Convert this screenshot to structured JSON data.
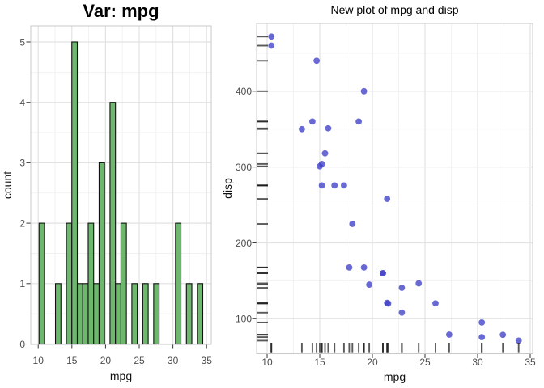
{
  "figure": {
    "background": "#ffffff",
    "grid_major_color": "#e2e2e2",
    "grid_minor_color": "#efefef",
    "panel_border_color": "#c9c9c9",
    "tick_mark_color": "#333333",
    "tick_label_color": "#4d4d4d"
  },
  "chart_data": [
    {
      "type": "bar",
      "subtype": "histogram",
      "title": "Var: mpg",
      "xlabel": "mpg",
      "ylabel": "count",
      "bar_fill": "#6eb86e",
      "bar_stroke": "#111111",
      "binwidth": 0.81,
      "bins": [
        {
          "center": 10.53,
          "count": 2
        },
        {
          "center": 12.97,
          "count": 1
        },
        {
          "center": 14.59,
          "count": 2
        },
        {
          "center": 15.4,
          "count": 5
        },
        {
          "center": 16.21,
          "count": 1
        },
        {
          "center": 17.02,
          "count": 1
        },
        {
          "center": 17.83,
          "count": 2
        },
        {
          "center": 18.64,
          "count": 1
        },
        {
          "center": 19.45,
          "count": 3
        },
        {
          "center": 21.07,
          "count": 4
        },
        {
          "center": 21.88,
          "count": 1
        },
        {
          "center": 22.69,
          "count": 2
        },
        {
          "center": 24.31,
          "count": 1
        },
        {
          "center": 25.93,
          "count": 1
        },
        {
          "center": 27.55,
          "count": 1
        },
        {
          "center": 30.79,
          "count": 2
        },
        {
          "center": 32.41,
          "count": 1
        },
        {
          "center": 34.03,
          "count": 1
        }
      ],
      "xticks": [
        10,
        15,
        20,
        25,
        30,
        35
      ],
      "yticks": [
        0,
        1,
        2,
        3,
        4,
        5
      ],
      "xlim": [
        8.9,
        35.7
      ],
      "ylim": [
        0,
        5.27
      ],
      "grid": "major and minor, light gray on white",
      "legend": "none"
    },
    {
      "type": "scatter",
      "title": "New plot of mpg and disp",
      "xlabel": "mpg",
      "ylabel": "disp",
      "point_color": "#4343c8",
      "point_opacity": 0.8,
      "rug_sides": "bottom and left",
      "rug_color": "#1a1a1a",
      "points": [
        [
          21.0,
          160
        ],
        [
          21.0,
          160
        ],
        [
          22.8,
          108
        ],
        [
          21.4,
          258
        ],
        [
          18.7,
          360
        ],
        [
          18.1,
          225
        ],
        [
          14.3,
          360
        ],
        [
          24.4,
          146.7
        ],
        [
          22.8,
          140.8
        ],
        [
          19.2,
          167.6
        ],
        [
          17.8,
          167.6
        ],
        [
          16.4,
          275.8
        ],
        [
          17.3,
          275.8
        ],
        [
          15.2,
          275.8
        ],
        [
          10.4,
          472
        ],
        [
          10.4,
          460
        ],
        [
          14.7,
          440
        ],
        [
          32.4,
          78.7
        ],
        [
          30.4,
          75.7
        ],
        [
          33.9,
          71.1
        ],
        [
          21.5,
          120.1
        ],
        [
          15.5,
          318
        ],
        [
          15.2,
          304
        ],
        [
          13.3,
          350
        ],
        [
          19.2,
          400
        ],
        [
          27.3,
          79
        ],
        [
          26.0,
          120.3
        ],
        [
          30.4,
          95.1
        ],
        [
          15.8,
          351
        ],
        [
          19.7,
          145
        ],
        [
          15.0,
          301
        ],
        [
          21.4,
          121
        ]
      ],
      "xticks": [
        10,
        15,
        20,
        25,
        30,
        35
      ],
      "yticks": [
        100,
        200,
        300,
        400
      ],
      "xlim": [
        9.2,
        35.1
      ],
      "ylim": [
        54,
        489
      ],
      "grid": "major and minor, light gray on white",
      "legend": "none"
    }
  ]
}
